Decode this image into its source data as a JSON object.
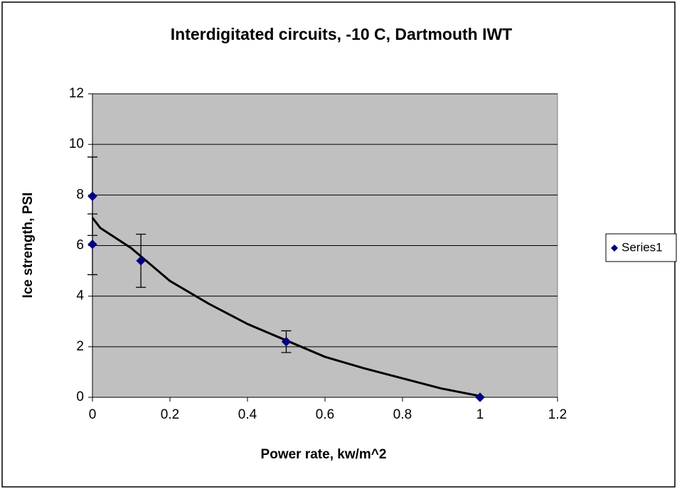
{
  "chart_data": {
    "type": "scatter",
    "title": "Interdigitated circuits, -10 C, Dartmouth IWT",
    "x_label": "Power rate, kw/m^2",
    "y_label": "Ice strength, PSI",
    "series": [
      {
        "name": "Series1",
        "color": "#000080",
        "x": [
          0,
          0,
          0.125,
          0.5,
          1
        ],
        "values": [
          7.95,
          6.05,
          5.4,
          2.2,
          0
        ],
        "errors": [
          1.55,
          1.2,
          1.05,
          0.43,
          0
        ]
      }
    ],
    "trendline": {
      "color": "#000000",
      "x": [
        0,
        0.02,
        0.1,
        0.2,
        0.3,
        0.4,
        0.5,
        0.6,
        0.7,
        0.8,
        0.9,
        1
      ],
      "values": [
        7.1,
        6.7,
        5.9,
        4.6,
        3.7,
        2.9,
        2.25,
        1.6,
        1.15,
        0.75,
        0.35,
        0.05
      ]
    },
    "xlim": [
      0,
      1.2
    ],
    "xticks": [
      0,
      0.2,
      0.4,
      0.6,
      0.8,
      1,
      1.2
    ],
    "ylim": [
      0,
      12
    ],
    "yticks": [
      0,
      2,
      4,
      6,
      8,
      10,
      12
    ],
    "grid": true,
    "legend": "right",
    "plot_background": "#c0c0c0"
  }
}
